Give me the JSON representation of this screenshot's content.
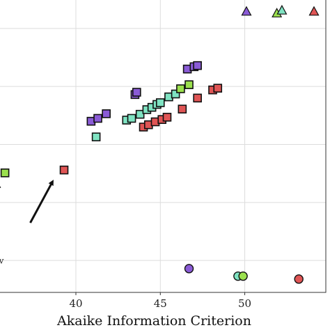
{
  "chart_data": {
    "type": "scatter",
    "xlabel": "Akaike Information Criterion",
    "ylabel": "",
    "xlim": [
      35.3,
      54.8
    ],
    "ylim": [
      -0.55,
      4.55
    ],
    "x_ticks": [
      40,
      45,
      50
    ],
    "x_tick_labels": [
      "40",
      "45",
      "50"
    ],
    "y_ticks": [
      0,
      1,
      2,
      3,
      4
    ],
    "grid": true,
    "colors": {
      "purple": "#8a5bd6",
      "green": "#9be04e",
      "teal": "#7fe3c2",
      "red": "#e05555"
    },
    "series": [
      {
        "marker": "triangle",
        "color_key": "purple",
        "points": [
          [
            50.1,
            4.3
          ]
        ]
      },
      {
        "marker": "triangle",
        "color_key": "green",
        "points": [
          [
            51.9,
            4.27
          ]
        ]
      },
      {
        "marker": "triangle",
        "color_key": "teal",
        "points": [
          [
            52.2,
            4.32
          ]
        ]
      },
      {
        "marker": "triangle",
        "color_key": "red",
        "points": [
          [
            54.1,
            4.3
          ]
        ]
      },
      {
        "marker": "square",
        "color_key": "purple",
        "points": [
          [
            40.9,
            2.4
          ],
          [
            41.3,
            2.45
          ],
          [
            41.8,
            2.53
          ],
          [
            43.5,
            2.86
          ],
          [
            43.6,
            2.9
          ],
          [
            46.6,
            3.3
          ],
          [
            47.0,
            3.34
          ],
          [
            47.2,
            3.36
          ]
        ]
      },
      {
        "marker": "square",
        "color_key": "teal",
        "points": [
          [
            41.2,
            2.13
          ],
          [
            43.0,
            2.42
          ],
          [
            43.3,
            2.45
          ],
          [
            43.8,
            2.52
          ],
          [
            44.2,
            2.6
          ],
          [
            44.5,
            2.64
          ],
          [
            44.8,
            2.69
          ],
          [
            45.0,
            2.72
          ],
          [
            45.5,
            2.82
          ],
          [
            45.9,
            2.87
          ]
        ]
      },
      {
        "marker": "square",
        "color_key": "green",
        "points": [
          [
            35.8,
            1.51
          ],
          [
            46.2,
            2.96
          ],
          [
            46.7,
            3.03
          ]
        ]
      },
      {
        "marker": "square",
        "color_key": "red",
        "points": [
          [
            39.3,
            1.56
          ],
          [
            44.0,
            2.3
          ],
          [
            44.3,
            2.34
          ],
          [
            44.7,
            2.39
          ],
          [
            45.1,
            2.43
          ],
          [
            45.4,
            2.47
          ],
          [
            46.3,
            2.61
          ],
          [
            47.2,
            2.8
          ],
          [
            48.1,
            2.94
          ],
          [
            48.4,
            2.97
          ]
        ]
      },
      {
        "marker": "circle",
        "color_key": "purple",
        "points": [
          [
            46.7,
            -0.14
          ]
        ]
      },
      {
        "marker": "circle",
        "color_key": "teal",
        "points": [
          [
            49.6,
            -0.27
          ]
        ]
      },
      {
        "marker": "circle",
        "color_key": "green",
        "points": [
          [
            49.9,
            -0.27
          ]
        ]
      },
      {
        "marker": "circle",
        "color_key": "red",
        "points": [
          [
            53.2,
            -0.32
          ]
        ]
      }
    ],
    "annotations": [
      {
        "type": "arrow",
        "from": [
          35.4,
          0.55
        ],
        "to": [
          35.4,
          1.3
        ]
      },
      {
        "type": "arrow",
        "from": [
          37.3,
          0.65
        ],
        "to": [
          38.6,
          1.35
        ]
      },
      {
        "type": "text",
        "text": "v",
        "at": [
          35.45,
          -0.05
        ]
      }
    ]
  }
}
